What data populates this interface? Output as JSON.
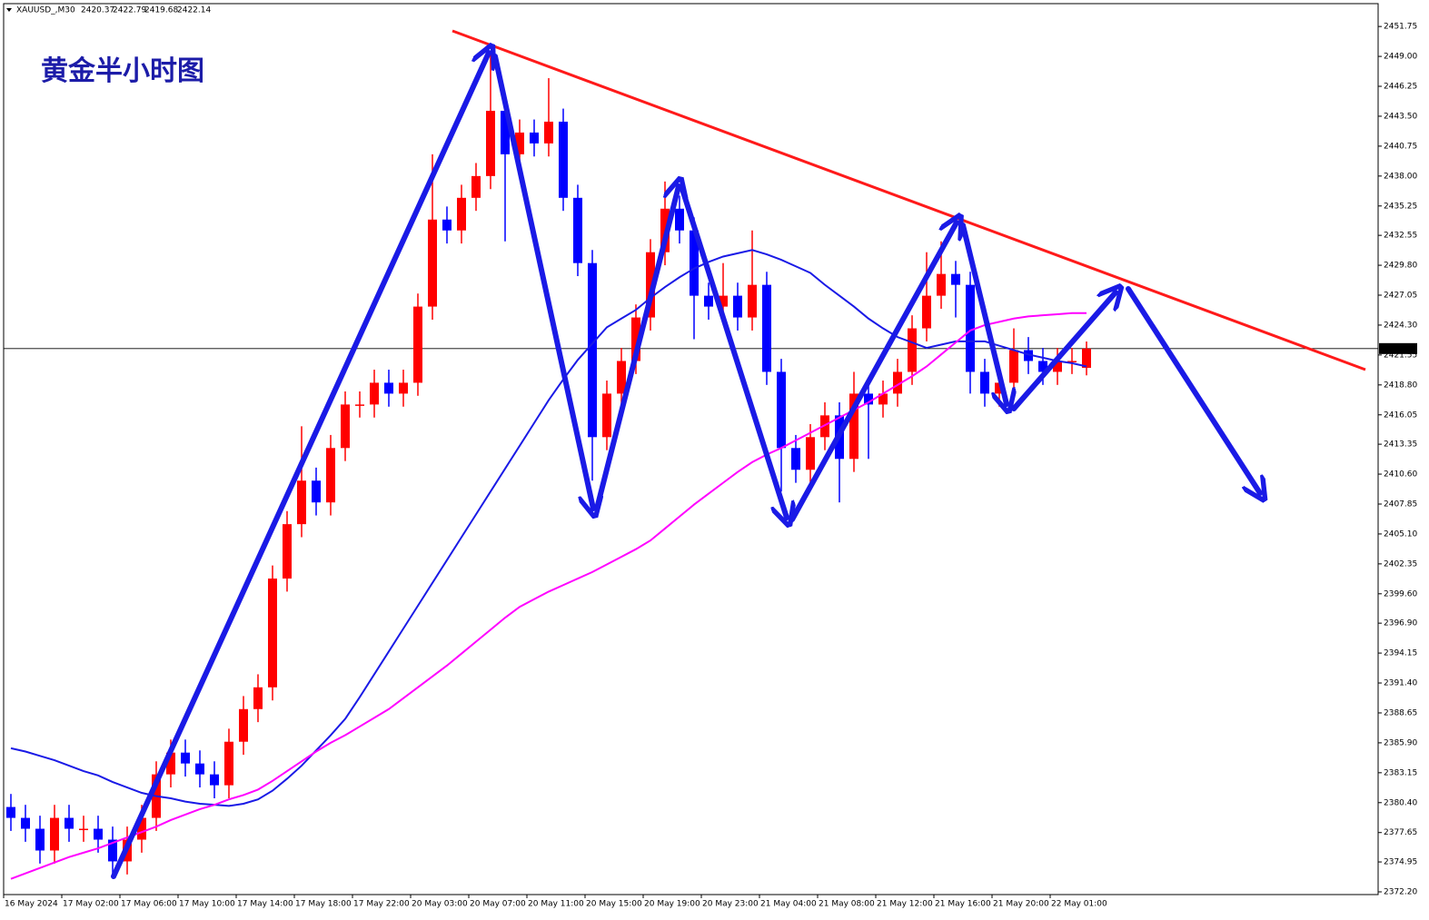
{
  "chart_data": {
    "type": "candlestick",
    "symbol": "XAUUSD_,M30",
    "title": "黄金半小时图",
    "up_color": "#ff0000",
    "down_color": "#0000ff",
    "categories": [
      "16 May 2024",
      null,
      null,
      null,
      "17 May 02:00",
      null,
      null,
      null,
      "17 May 06:00",
      null,
      null,
      null,
      "17 May 10:00",
      null,
      null,
      null,
      "17 May 14:00",
      null,
      null,
      null,
      "17 May 18:00",
      null,
      null,
      null,
      "17 May 22:00",
      null,
      null,
      null,
      "20 May 03:00",
      null,
      null,
      null,
      "20 May 07:00",
      null,
      null,
      null,
      "20 May 11:00",
      null,
      null,
      null,
      "20 May 15:00",
      null,
      null,
      null,
      "20 May 19:00",
      null,
      null,
      null,
      "20 May 23:00",
      null,
      null,
      null,
      "21 May 04:00",
      null,
      null,
      null,
      "21 May 08:00",
      null,
      null,
      null,
      "21 May 12:00",
      null,
      null,
      null,
      "21 May 16:00",
      null,
      null,
      null,
      "21 May 20:00",
      null,
      null,
      null,
      "22 May 01:00",
      null,
      null
    ],
    "ohlc": [
      [
        2380,
        2381.2,
        2377.8,
        2379
      ],
      [
        2379,
        2380.2,
        2376.8,
        2378
      ],
      [
        2378,
        2379.2,
        2374.8,
        2376
      ],
      [
        2376,
        2380.2,
        2374.8,
        2379
      ],
      [
        2379,
        2380.2,
        2376.8,
        2378
      ],
      [
        2378,
        2379.2,
        2376.8,
        2378
      ],
      [
        2378,
        2379.2,
        2375.8,
        2377
      ],
      [
        2377,
        2378.2,
        2373.8,
        2375
      ],
      [
        2375,
        2378.2,
        2373.8,
        2377
      ],
      [
        2377,
        2380.2,
        2375.8,
        2379
      ],
      [
        2379,
        2384.2,
        2377.8,
        2383
      ],
      [
        2383,
        2386.2,
        2381.8,
        2385
      ],
      [
        2385,
        2386.2,
        2382.8,
        2384
      ],
      [
        2384,
        2385.2,
        2381.8,
        2383
      ],
      [
        2383,
        2384.2,
        2380.8,
        2382
      ],
      [
        2382,
        2387.2,
        2380.8,
        2386
      ],
      [
        2386,
        2390.2,
        2384.8,
        2389
      ],
      [
        2389,
        2392.2,
        2387.8,
        2391
      ],
      [
        2391,
        2402.2,
        2389.8,
        2401
      ],
      [
        2401,
        2407.2,
        2399.8,
        2406
      ],
      [
        2406,
        2415,
        2404.8,
        2410
      ],
      [
        2410,
        2411.2,
        2406.8,
        2408
      ],
      [
        2408,
        2414.2,
        2406.8,
        2413
      ],
      [
        2413,
        2418.2,
        2411.8,
        2417
      ],
      [
        2417,
        2418.2,
        2415.8,
        2417
      ],
      [
        2417,
        2420.2,
        2415.8,
        2419
      ],
      [
        2419,
        2420.2,
        2416.8,
        2418
      ],
      [
        2418,
        2420.2,
        2416.8,
        2419
      ],
      [
        2419,
        2427.2,
        2417.8,
        2426
      ],
      [
        2426,
        2440,
        2424.8,
        2434
      ],
      [
        2434,
        2435.2,
        2431.8,
        2433
      ],
      [
        2433,
        2437.2,
        2431.8,
        2436
      ],
      [
        2436,
        2439.2,
        2434.8,
        2438
      ],
      [
        2438,
        2449.5,
        2436.8,
        2444
      ],
      [
        2444,
        2445.2,
        2432,
        2440
      ],
      [
        2440,
        2443.2,
        2438.8,
        2442
      ],
      [
        2442,
        2443.2,
        2439.8,
        2441
      ],
      [
        2441,
        2447,
        2439.8,
        2443
      ],
      [
        2443,
        2444.2,
        2434.8,
        2436
      ],
      [
        2436,
        2437.2,
        2428.8,
        2430
      ],
      [
        2430,
        2431.2,
        2410,
        2414
      ],
      [
        2414,
        2419.2,
        2412.8,
        2418
      ],
      [
        2418,
        2422.2,
        2416.8,
        2421
      ],
      [
        2421,
        2426.2,
        2419.8,
        2425
      ],
      [
        2425,
        2432.2,
        2423.8,
        2431
      ],
      [
        2431,
        2437.5,
        2429.8,
        2435
      ],
      [
        2435,
        2436.2,
        2431.8,
        2433
      ],
      [
        2433,
        2434.2,
        2423,
        2427
      ],
      [
        2427,
        2428.2,
        2424.8,
        2426
      ],
      [
        2426,
        2430,
        2424.8,
        2427
      ],
      [
        2427,
        2428.2,
        2423.8,
        2425
      ],
      [
        2425,
        2433,
        2423.8,
        2428
      ],
      [
        2428,
        2429.2,
        2418.8,
        2420
      ],
      [
        2420,
        2421.2,
        2409,
        2413
      ],
      [
        2413,
        2414.2,
        2409.8,
        2411
      ],
      [
        2411,
        2415.2,
        2409.8,
        2414
      ],
      [
        2414,
        2417.2,
        2412.8,
        2416
      ],
      [
        2416,
        2417.2,
        2408,
        2412
      ],
      [
        2412,
        2420,
        2410.8,
        2418
      ],
      [
        2418,
        2419.2,
        2412,
        2417
      ],
      [
        2417,
        2419.2,
        2415.8,
        2418
      ],
      [
        2418,
        2421.2,
        2416.8,
        2420
      ],
      [
        2420,
        2425.2,
        2418.8,
        2424
      ],
      [
        2424,
        2431,
        2422.8,
        2427
      ],
      [
        2427,
        2432,
        2425.8,
        2429
      ],
      [
        2429,
        2430.2,
        2425,
        2428
      ],
      [
        2428,
        2429.2,
        2418,
        2420
      ],
      [
        2420,
        2421.2,
        2416.8,
        2418
      ],
      [
        2418,
        2420.2,
        2416.8,
        2419
      ],
      [
        2419,
        2424,
        2417.8,
        2422
      ],
      [
        2422,
        2423.2,
        2419.8,
        2421
      ],
      [
        2421,
        2422.2,
        2418.8,
        2420
      ],
      [
        2420,
        2422.2,
        2418.8,
        2421
      ],
      [
        2421,
        2422.2,
        2419.8,
        2421
      ],
      [
        2420.37,
        2422.79,
        2419.68,
        2422.14
      ]
    ],
    "series": [
      {
        "color": "#1a1ae6",
        "values": [
          2385.4,
          2385.1,
          2384.7,
          2384.3,
          2383.8,
          2383.3,
          2382.9,
          2382.3,
          2381.8,
          2381.3,
          2381.0,
          2380.8,
          2380.5,
          2380.3,
          2380.2,
          2380.1,
          2380.3,
          2380.7,
          2381.5,
          2382.6,
          2383.8,
          2385.2,
          2386.6,
          2388.1,
          2390.1,
          2392.2,
          2394.3,
          2396.4,
          2398.5,
          2400.6,
          2402.7,
          2404.8,
          2406.9,
          2409.0,
          2411.1,
          2413.2,
          2415.3,
          2417.4,
          2419.3,
          2421.1,
          2422.6,
          2424.1,
          2424.9,
          2425.7,
          2426.8,
          2427.8,
          2428.7,
          2429.5,
          2430.1,
          2430.6,
          2430.9,
          2431.2,
          2430.8,
          2430.3,
          2429.7,
          2429.1,
          2428.0,
          2427.0,
          2426.0,
          2424.9,
          2424.0,
          2423.2,
          2422.7,
          2422.2,
          2422.5,
          2422.8,
          2422.8,
          2422.8,
          2422.4,
          2422.0,
          2421.6,
          2421.3,
          2421.0,
          2420.8,
          2420.5
        ]
      },
      {
        "color": "#ff00ff",
        "values": [
          2373.4,
          2373.9,
          2374.4,
          2374.9,
          2375.4,
          2375.8,
          2376.2,
          2376.7,
          2377.2,
          2377.7,
          2378.2,
          2378.8,
          2379.3,
          2379.8,
          2380.2,
          2380.7,
          2381.1,
          2381.6,
          2382.4,
          2383.3,
          2384.2,
          2385.1,
          2385.9,
          2386.6,
          2387.4,
          2388.2,
          2389.0,
          2390.0,
          2391.0,
          2392.0,
          2393.0,
          2394.1,
          2395.2,
          2396.3,
          2397.4,
          2398.4,
          2399.1,
          2399.8,
          2400.4,
          2401.0,
          2401.6,
          2402.3,
          2403.0,
          2403.7,
          2404.5,
          2405.6,
          2406.7,
          2407.8,
          2408.8,
          2409.8,
          2410.8,
          2411.7,
          2412.4,
          2413.0,
          2413.7,
          2414.4,
          2415.1,
          2415.8,
          2416.5,
          2417.2,
          2418.0,
          2418.8,
          2419.6,
          2420.5,
          2421.6,
          2422.7,
          2423.8,
          2424.3,
          2424.6,
          2424.9,
          2425.1,
          2425.2,
          2425.3,
          2425.4,
          2425.4
        ]
      }
    ],
    "current_price": 2422.14,
    "ylim": [
      2371.95,
      2453.85
    ],
    "yticks": [
      {
        "value": 2451.75,
        "label": "2451.75"
      },
      {
        "value": 2449.0,
        "label": "2449.00"
      },
      {
        "value": 2446.25,
        "label": "2446.25"
      },
      {
        "value": 2443.5,
        "label": "2443.50"
      },
      {
        "value": 2440.75,
        "label": "2440.75"
      },
      {
        "value": 2438.0,
        "label": "2438.00"
      },
      {
        "value": 2435.25,
        "label": "2435.25"
      },
      {
        "value": 2432.55,
        "label": "2432.55"
      },
      {
        "value": 2429.8,
        "label": "2429.80"
      },
      {
        "value": 2427.05,
        "label": "2427.05"
      },
      {
        "value": 2424.3,
        "label": "2424.30"
      },
      {
        "value": 2421.55,
        "label": "2421.55"
      },
      {
        "value": 2418.8,
        "label": "2418.80"
      },
      {
        "value": 2416.05,
        "label": "2416.05"
      },
      {
        "value": 2413.35,
        "label": "2413.35"
      },
      {
        "value": 2410.6,
        "label": "2410.60"
      },
      {
        "value": 2407.85,
        "label": "2407.85"
      },
      {
        "value": 2405.1,
        "label": "2405.10"
      },
      {
        "value": 2402.35,
        "label": "2402.35"
      },
      {
        "value": 2399.6,
        "label": "2399.60"
      },
      {
        "value": 2396.9,
        "label": "2396.90"
      },
      {
        "value": 2394.15,
        "label": "2394.15"
      },
      {
        "value": 2391.4,
        "label": "2391.40"
      },
      {
        "value": 2388.65,
        "label": "2388.65"
      },
      {
        "value": 2385.9,
        "label": "2385.90"
      },
      {
        "value": 2383.15,
        "label": "2383.15"
      },
      {
        "value": 2380.4,
        "label": "2380.40"
      },
      {
        "value": 2377.65,
        "label": "2377.65"
      },
      {
        "value": 2374.95,
        "label": "2374.95"
      },
      {
        "value": 2372.2,
        "label": "2372.20"
      }
    ]
  }
}
